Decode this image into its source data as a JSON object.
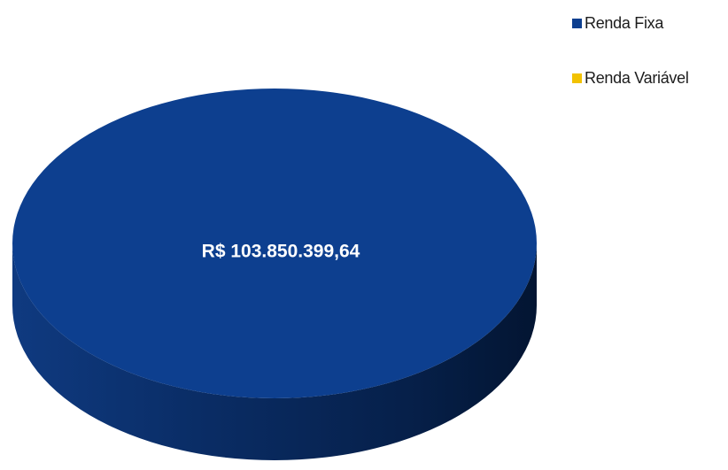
{
  "chart_data": {
    "type": "pie",
    "title": "",
    "categories": [
      "Renda Fixa",
      "Renda Variável"
    ],
    "values": [
      103850399.64,
      0
    ],
    "data_labels": [
      "R$ 103.850.399,64",
      ""
    ],
    "colors": [
      "#0d3f8f",
      "#f2c200"
    ],
    "legend_position": "top-right",
    "style": "3d"
  }
}
